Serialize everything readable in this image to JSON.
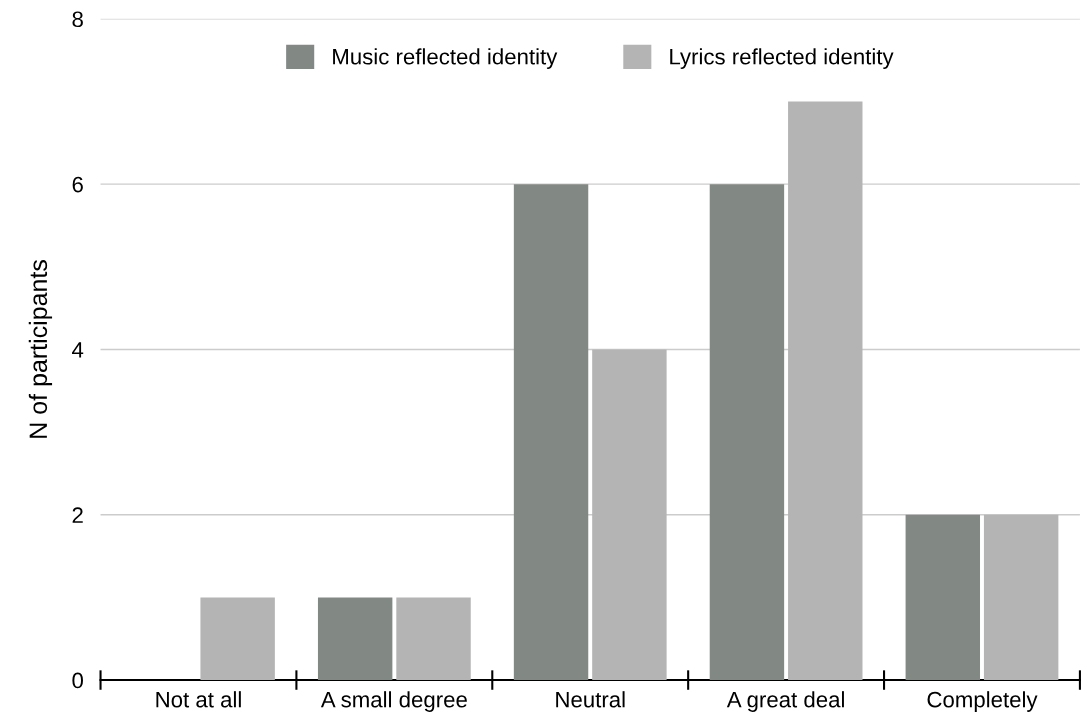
{
  "chart_data": {
    "type": "bar",
    "ylabel": "N of participants",
    "categories": [
      "Not at all",
      "A small degree",
      "Neutral",
      "A great deal",
      "Completely"
    ],
    "series": [
      {
        "name": "Music reflected identity",
        "color": "#828884",
        "values": [
          0,
          1,
          6,
          6,
          2
        ]
      },
      {
        "name": "Lyrics reflected identity",
        "color": "#b4b4b4",
        "values": [
          1,
          1,
          4,
          7,
          2
        ]
      }
    ],
    "ylim": [
      0,
      8
    ],
    "yticks": [
      0,
      2,
      4,
      6,
      8
    ],
    "grid": "y",
    "legend": "top"
  }
}
